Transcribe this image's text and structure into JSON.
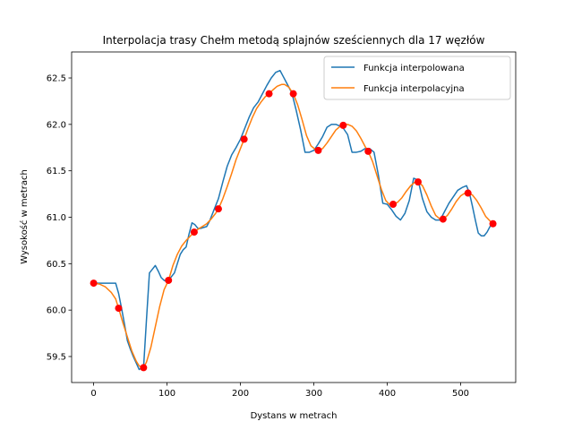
{
  "chart_data": {
    "type": "line",
    "title": "Interpolacja trasy Chełm metodą splajnów sześciennych dla 17 węzłów",
    "xlabel": "Dystans w metrach",
    "ylabel": "Wysokość w metrach",
    "xlim": [
      -30,
      575
    ],
    "ylim": [
      59.22,
      62.78
    ],
    "x_ticks": [
      0,
      100,
      200,
      300,
      400,
      500
    ],
    "y_ticks": [
      59.5,
      60.0,
      60.5,
      61.0,
      61.5,
      62.0,
      62.5
    ],
    "grid": false,
    "legend_position": "top-right",
    "series": [
      {
        "name": "Funkcja interpolowana",
        "color": "#1f77b4",
        "x": [
          0,
          8,
          16,
          24,
          30,
          34,
          38,
          42,
          46,
          50,
          54,
          58,
          62,
          66,
          68,
          72,
          76,
          80,
          84,
          88,
          92,
          96,
          100,
          102,
          106,
          110,
          114,
          118,
          122,
          126,
          130,
          134,
          138,
          142,
          146,
          150,
          154,
          158,
          164,
          170,
          176,
          182,
          188,
          194,
          200,
          206,
          212,
          218,
          224,
          230,
          236,
          242,
          248,
          254,
          258,
          264,
          270,
          276,
          282,
          288,
          294,
          300,
          306,
          312,
          318,
          324,
          330,
          336,
          340,
          346,
          352,
          358,
          364,
          370,
          376,
          382,
          388,
          394,
          400,
          406,
          412,
          418,
          424,
          430,
          436,
          442,
          448,
          454,
          460,
          466,
          472,
          478,
          484,
          490,
          496,
          502,
          508,
          512,
          516,
          520,
          524,
          528,
          532,
          536,
          540,
          544
        ],
        "y": [
          60.29,
          60.29,
          60.29,
          60.29,
          60.29,
          60.18,
          60.02,
          59.85,
          59.67,
          59.58,
          59.5,
          59.43,
          59.36,
          59.38,
          59.38,
          59.9,
          60.4,
          60.44,
          60.48,
          60.42,
          60.35,
          60.32,
          60.31,
          60.32,
          60.36,
          60.4,
          60.5,
          60.6,
          60.65,
          60.68,
          60.82,
          60.94,
          60.92,
          60.88,
          60.88,
          60.89,
          60.9,
          60.96,
          61.08,
          61.2,
          61.38,
          61.55,
          61.67,
          61.75,
          61.84,
          61.96,
          62.08,
          62.18,
          62.24,
          62.33,
          62.42,
          62.5,
          62.56,
          62.58,
          62.52,
          62.43,
          62.34,
          62.15,
          61.94,
          61.7,
          61.7,
          61.72,
          61.79,
          61.87,
          61.97,
          62.0,
          62.0,
          61.98,
          61.96,
          61.89,
          61.7,
          61.7,
          61.71,
          61.74,
          61.74,
          61.7,
          61.45,
          61.15,
          61.14,
          61.08,
          61.01,
          60.97,
          61.04,
          61.18,
          61.42,
          61.4,
          61.2,
          61.06,
          61.0,
          60.97,
          60.97,
          61.06,
          61.15,
          61.22,
          61.29,
          61.32,
          61.34,
          61.26,
          61.12,
          60.97,
          60.83,
          60.8,
          60.8,
          60.84,
          60.9,
          60.93
        ]
      },
      {
        "name": "Funkcja interpolacyjna",
        "color": "#ff7f0e",
        "x": [
          0,
          8,
          16,
          24,
          30,
          34,
          40,
          46,
          52,
          58,
          62,
          66,
          68,
          72,
          78,
          84,
          90,
          96,
          102,
          108,
          114,
          120,
          126,
          132,
          137,
          142,
          148,
          154,
          160,
          166,
          170,
          176,
          182,
          188,
          194,
          200,
          205,
          210,
          216,
          222,
          228,
          234,
          239,
          244,
          250,
          256,
          260,
          266,
          272,
          278,
          284,
          290,
          296,
          302,
          306,
          312,
          318,
          324,
          330,
          336,
          340,
          346,
          352,
          358,
          364,
          370,
          374,
          380,
          386,
          392,
          398,
          404,
          408,
          414,
          420,
          426,
          432,
          438,
          442,
          448,
          454,
          460,
          466,
          472,
          476,
          482,
          488,
          494,
          500,
          506,
          510,
          516,
          522,
          528,
          534,
          540,
          544
        ],
        "y": [
          60.29,
          60.28,
          60.25,
          60.19,
          60.12,
          60.02,
          59.86,
          59.71,
          59.56,
          59.45,
          59.4,
          59.38,
          59.38,
          59.44,
          59.6,
          59.82,
          60.04,
          60.22,
          60.32,
          60.48,
          60.6,
          60.69,
          60.75,
          60.8,
          60.84,
          60.87,
          60.9,
          60.93,
          60.98,
          61.04,
          61.09,
          61.2,
          61.33,
          61.47,
          61.62,
          61.74,
          61.84,
          61.95,
          62.07,
          62.17,
          62.24,
          62.3,
          62.33,
          62.37,
          62.41,
          62.43,
          62.43,
          62.4,
          62.33,
          62.21,
          62.05,
          61.88,
          61.77,
          61.73,
          61.72,
          61.74,
          61.8,
          61.87,
          61.94,
          61.98,
          61.99,
          62.0,
          61.98,
          61.93,
          61.85,
          61.76,
          61.71,
          61.6,
          61.45,
          61.3,
          61.18,
          61.13,
          61.14,
          61.16,
          61.21,
          61.28,
          61.34,
          61.38,
          61.38,
          61.34,
          61.24,
          61.12,
          61.02,
          60.98,
          60.98,
          61.02,
          61.09,
          61.17,
          61.23,
          61.26,
          61.26,
          61.24,
          61.18,
          61.1,
          61.01,
          60.96,
          60.93
        ]
      }
    ],
    "nodes": {
      "name": "",
      "color": "#ff0000",
      "x": [
        0,
        34,
        68,
        102,
        137,
        170,
        205,
        239,
        272,
        306,
        340,
        374,
        408,
        442,
        476,
        510,
        544
      ],
      "y": [
        60.29,
        60.02,
        59.38,
        60.32,
        60.84,
        61.09,
        61.84,
        62.33,
        62.33,
        61.72,
        61.99,
        61.71,
        61.14,
        61.38,
        60.98,
        61.26,
        60.93
      ]
    }
  }
}
